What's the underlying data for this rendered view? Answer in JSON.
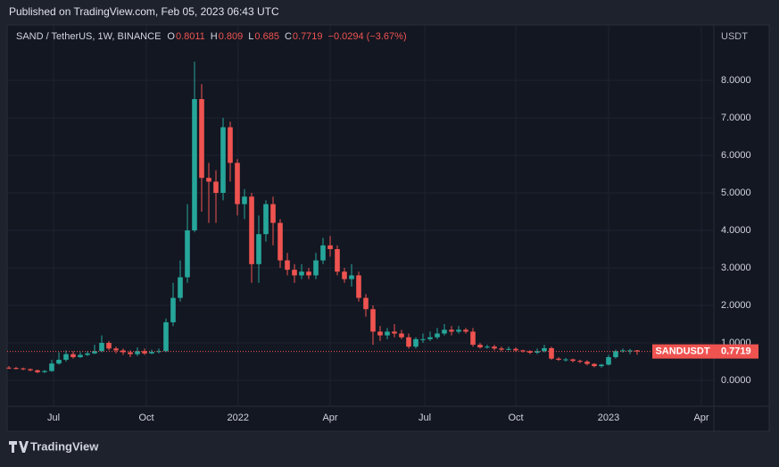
{
  "publisher": "Published on TradingView.com, Feb 05, 2023 06:43 UTC",
  "footer": "TradingView",
  "chart_data": {
    "type": "candlestick",
    "title": "SAND / TetherUS, 1W, BINANCE",
    "ohlc_labels": [
      "O",
      "H",
      "L",
      "C"
    ],
    "change": "−0.0294 (−3.67%)",
    "price_label": "SANDUSDT",
    "axis_unit": "USDT",
    "up_color": "#26a69a",
    "down_color": "#ef5350",
    "open": [
      0.34,
      0.33,
      0.32,
      0.3,
      0.27,
      0.22,
      0.25,
      0.45,
      0.55,
      0.7,
      0.62,
      0.68,
      0.72,
      0.78,
      1.0,
      0.85,
      0.8,
      0.75,
      0.7,
      0.78,
      0.72,
      0.76,
      0.78,
      1.55,
      2.2,
      2.75,
      4.0,
      7.5,
      5.4,
      5.3,
      5.0,
      6.75,
      5.8,
      4.7,
      4.9,
      3.1,
      3.9,
      4.7,
      4.2,
      3.2,
      2.95,
      2.8,
      2.9,
      2.8,
      3.2,
      3.6,
      3.5,
      2.9,
      2.7,
      2.8,
      2.2,
      1.9,
      1.3,
      1.2,
      1.3,
      1.25,
      1.15,
      0.9,
      1.1,
      1.1,
      1.15,
      1.25,
      1.35,
      1.3,
      1.35,
      1.3,
      0.95,
      0.88,
      0.9,
      0.85,
      0.82,
      0.84,
      0.8,
      0.78,
      0.74,
      0.78,
      0.86,
      0.58,
      0.55,
      0.56,
      0.52,
      0.5,
      0.44,
      0.38,
      0.42,
      0.62,
      0.78,
      0.8,
      0.8011
    ],
    "high": [
      0.38,
      0.36,
      0.34,
      0.32,
      0.29,
      0.28,
      0.55,
      0.75,
      0.8,
      0.78,
      0.75,
      0.78,
      0.95,
      1.2,
      1.05,
      0.9,
      0.85,
      0.8,
      0.88,
      0.85,
      0.82,
      0.85,
      1.65,
      2.6,
      3.2,
      4.7,
      8.5,
      7.9,
      5.8,
      5.6,
      7.0,
      6.9,
      5.9,
      5.1,
      5.0,
      4.4,
      4.8,
      4.9,
      4.3,
      3.4,
      3.1,
      3.1,
      3.0,
      3.4,
      3.8,
      3.85,
      3.6,
      3.0,
      3.1,
      2.9,
      2.3,
      2.0,
      1.45,
      1.4,
      1.5,
      1.35,
      1.25,
      1.15,
      1.25,
      1.3,
      1.4,
      1.5,
      1.45,
      1.45,
      1.4,
      1.4,
      1.0,
      0.95,
      0.95,
      0.9,
      0.9,
      0.88,
      0.82,
      0.8,
      0.85,
      0.95,
      0.9,
      0.62,
      0.6,
      0.58,
      0.55,
      0.54,
      0.46,
      0.44,
      0.68,
      0.82,
      0.85,
      0.84,
      0.809
    ],
    "low": [
      0.3,
      0.29,
      0.27,
      0.24,
      0.19,
      0.2,
      0.23,
      0.42,
      0.5,
      0.58,
      0.6,
      0.65,
      0.7,
      0.75,
      0.8,
      0.72,
      0.68,
      0.62,
      0.65,
      0.68,
      0.7,
      0.72,
      0.75,
      1.45,
      2.1,
      2.6,
      3.95,
      4.5,
      4.2,
      4.2,
      4.8,
      5.3,
      4.4,
      4.3,
      2.6,
      2.6,
      3.7,
      3.6,
      3.0,
      2.8,
      2.6,
      2.7,
      2.7,
      2.7,
      3.1,
      3.3,
      2.8,
      2.6,
      2.5,
      2.1,
      1.7,
      0.95,
      1.05,
      1.1,
      1.15,
      1.1,
      0.85,
      0.85,
      1.0,
      1.05,
      1.1,
      1.2,
      1.2,
      1.25,
      1.25,
      0.9,
      0.85,
      0.85,
      0.8,
      0.78,
      0.8,
      0.76,
      0.74,
      0.7,
      0.7,
      0.75,
      0.55,
      0.52,
      0.5,
      0.48,
      0.46,
      0.4,
      0.35,
      0.34,
      0.4,
      0.58,
      0.74,
      0.7,
      0.685
    ],
    "close": [
      0.33,
      0.32,
      0.3,
      0.27,
      0.22,
      0.25,
      0.45,
      0.55,
      0.7,
      0.62,
      0.68,
      0.72,
      0.78,
      1.0,
      0.85,
      0.8,
      0.75,
      0.7,
      0.78,
      0.72,
      0.76,
      0.78,
      1.55,
      2.2,
      2.75,
      4.0,
      7.5,
      5.4,
      5.3,
      5.0,
      6.75,
      5.8,
      4.7,
      4.9,
      3.1,
      3.9,
      4.7,
      4.2,
      3.2,
      2.95,
      2.8,
      2.9,
      2.8,
      3.2,
      3.6,
      3.5,
      2.9,
      2.7,
      2.8,
      2.2,
      1.9,
      1.3,
      1.2,
      1.3,
      1.25,
      1.15,
      0.9,
      1.1,
      1.1,
      1.15,
      1.25,
      1.35,
      1.3,
      1.35,
      1.3,
      0.95,
      0.88,
      0.9,
      0.85,
      0.82,
      0.84,
      0.8,
      0.78,
      0.74,
      0.78,
      0.86,
      0.58,
      0.55,
      0.56,
      0.52,
      0.5,
      0.44,
      0.38,
      0.42,
      0.62,
      0.78,
      0.8,
      0.8,
      0.7719
    ],
    "xlim": [
      -0.25,
      98.75
    ],
    "xticks": [
      {
        "value": 6.25,
        "label": "Jul"
      },
      {
        "value": 19.25,
        "label": "Oct"
      },
      {
        "value": 32.1,
        "label": "2022"
      },
      {
        "value": 45,
        "label": "Apr"
      },
      {
        "value": 58.25,
        "label": "Jul"
      },
      {
        "value": 71,
        "label": "Oct"
      },
      {
        "value": 84,
        "label": "2023"
      },
      {
        "value": 97,
        "label": "Apr"
      }
    ],
    "ylim": [
      -0.69,
      9.476
    ],
    "yticks": [
      {
        "value": 0,
        "label": "0.0000"
      },
      {
        "value": 1,
        "label": "1.0000"
      },
      {
        "value": 2,
        "label": "2.0000"
      },
      {
        "value": 3,
        "label": "3.0000"
      },
      {
        "value": 4,
        "label": "4.0000"
      },
      {
        "value": 5,
        "label": "5.0000"
      },
      {
        "value": 6,
        "label": "6.0000"
      },
      {
        "value": 7,
        "label": "7.0000"
      },
      {
        "value": 8,
        "label": "8.0000"
      }
    ],
    "grid": true
  }
}
